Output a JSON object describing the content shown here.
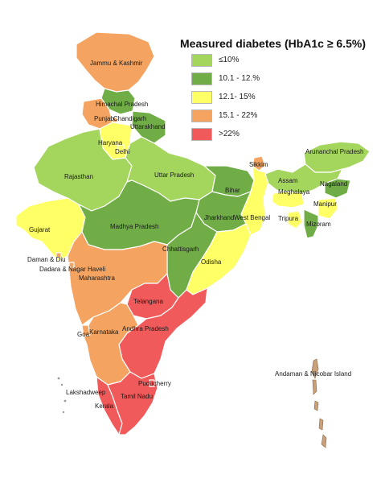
{
  "legend": {
    "title": "Measured diabetes (HbA1c ≥ 6.5%)",
    "items": [
      {
        "label": "≤10%",
        "color": "#a4d65e"
      },
      {
        "label": "10.1 - 12.%",
        "color": "#70ad47"
      },
      {
        "label": "12.1- 15%",
        "color": "#ffff66"
      },
      {
        "label": "15.1 - 22%",
        "color": "#f4a460"
      },
      {
        "label": ">22%",
        "color": "#f05a5a"
      }
    ]
  },
  "regions": [
    {
      "key": "jk",
      "name": "Jammu & Kashmir",
      "color": "#f4a460"
    },
    {
      "key": "hp",
      "name": "Himachal Pradesh",
      "color": "#70ad47"
    },
    {
      "key": "pb",
      "name": "Punjab",
      "color": "#f4a460"
    },
    {
      "key": "ch",
      "name": "Chandigarh",
      "color": "#f4a460"
    },
    {
      "key": "uk",
      "name": "Uttarakhand",
      "color": "#70ad47"
    },
    {
      "key": "hr",
      "name": "Haryana",
      "color": "#ffff66"
    },
    {
      "key": "dl",
      "name": "Delhi",
      "color": "#ffff66"
    },
    {
      "key": "rj",
      "name": "Rajasthan",
      "color": "#a4d65e"
    },
    {
      "key": "up",
      "name": "Uttar Pradesh",
      "color": "#a4d65e"
    },
    {
      "key": "br",
      "name": "Bihar",
      "color": "#70ad47"
    },
    {
      "key": "sk",
      "name": "Sikkim",
      "color": "#f4a460"
    },
    {
      "key": "arp",
      "name": "Arunanchal Pradesh",
      "color": "#a4d65e"
    },
    {
      "key": "as",
      "name": "Assam",
      "color": "#a4d65e"
    },
    {
      "key": "ml",
      "name": "Meghalaya",
      "color": "#ffff66"
    },
    {
      "key": "nl",
      "name": "Nagaland",
      "color": "#70ad47"
    },
    {
      "key": "mn",
      "name": "Manipur",
      "color": "#ffff66"
    },
    {
      "key": "tr",
      "name": "Tripura",
      "color": "#ffff66"
    },
    {
      "key": "mz",
      "name": "Mizoram",
      "color": "#70ad47"
    },
    {
      "key": "wb",
      "name": "West Bengal",
      "color": "#ffff66"
    },
    {
      "key": "jh",
      "name": "Jharkhand",
      "color": "#70ad47"
    },
    {
      "key": "gj",
      "name": "Gujarat",
      "color": "#ffff66"
    },
    {
      "key": "mp",
      "name": "Madhya Pradesh",
      "color": "#70ad47"
    },
    {
      "key": "cg",
      "name": "Chhattisgarh",
      "color": "#70ad47"
    },
    {
      "key": "od",
      "name": "Odisha",
      "color": "#ffff66"
    },
    {
      "key": "dd",
      "name": "Daman & Diu",
      "color": "#f4a460"
    },
    {
      "key": "dnh",
      "name": "Dadara & Nagar Haveli",
      "color": "#f4a460"
    },
    {
      "key": "mh",
      "name": "Maharashtra",
      "color": "#f4a460"
    },
    {
      "key": "tg",
      "name": "Telangana",
      "color": "#f05a5a"
    },
    {
      "key": "ap",
      "name": "Andhra Pradesh",
      "color": "#f05a5a"
    },
    {
      "key": "ga",
      "name": "Goa",
      "color": "#f4a460"
    },
    {
      "key": "ka",
      "name": "Karnataka",
      "color": "#f4a460"
    },
    {
      "key": "py",
      "name": "Puducherry",
      "color": "#f05a5a"
    },
    {
      "key": "tn",
      "name": "Tamil Nadu",
      "color": "#f05a5a"
    },
    {
      "key": "kl",
      "name": "Kerala",
      "color": "#f05a5a"
    },
    {
      "key": "ld",
      "name": "Lakshadweep",
      "color": "#ffffff"
    },
    {
      "key": "an",
      "name": "Andaman & Nicobar Island",
      "color": "#c8a07a"
    }
  ]
}
